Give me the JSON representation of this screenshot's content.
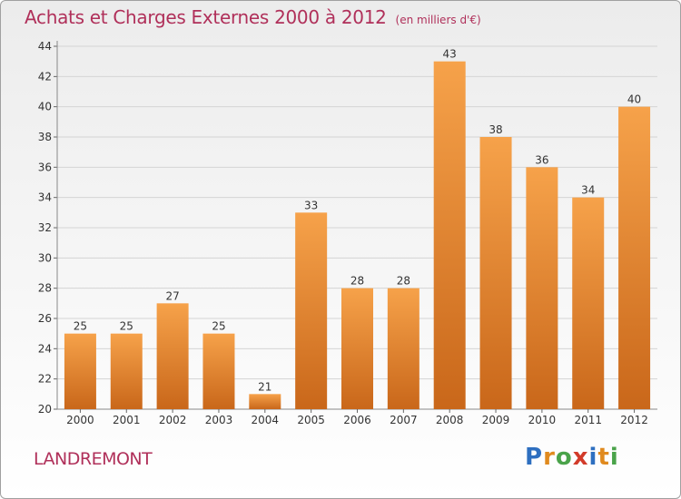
{
  "header": {
    "title": "Achats et Charges Externes 2000 à 2012",
    "subtitle": "(en milliers d'€)"
  },
  "footer": {
    "commune": "LANDREMONT",
    "logo_letters": [
      {
        "ch": "P",
        "color": "#2e6fc0"
      },
      {
        "ch": "r",
        "color": "#e08a1e"
      },
      {
        "ch": "o",
        "color": "#4aa34a"
      },
      {
        "ch": "x",
        "color": "#d23b2a"
      },
      {
        "ch": "i",
        "color": "#2e6fc0"
      },
      {
        "ch": "t",
        "color": "#e08a1e"
      },
      {
        "ch": "i",
        "color": "#4aa34a"
      }
    ]
  },
  "chart_data": {
    "type": "bar",
    "categories": [
      "2000",
      "2001",
      "2002",
      "2003",
      "2004",
      "2005",
      "2006",
      "2007",
      "2008",
      "2009",
      "2010",
      "2011",
      "2012"
    ],
    "values": [
      25,
      25,
      27,
      25,
      21,
      33,
      28,
      28,
      43,
      38,
      36,
      34,
      40
    ],
    "ylim": [
      20,
      44
    ],
    "yticks": [
      20,
      22,
      24,
      26,
      28,
      30,
      32,
      34,
      36,
      38,
      40,
      42,
      44
    ],
    "grid": true,
    "bar_color_top": "#f6a24a",
    "bar_color_bottom": "#c9671a",
    "label_color": "#333333"
  }
}
